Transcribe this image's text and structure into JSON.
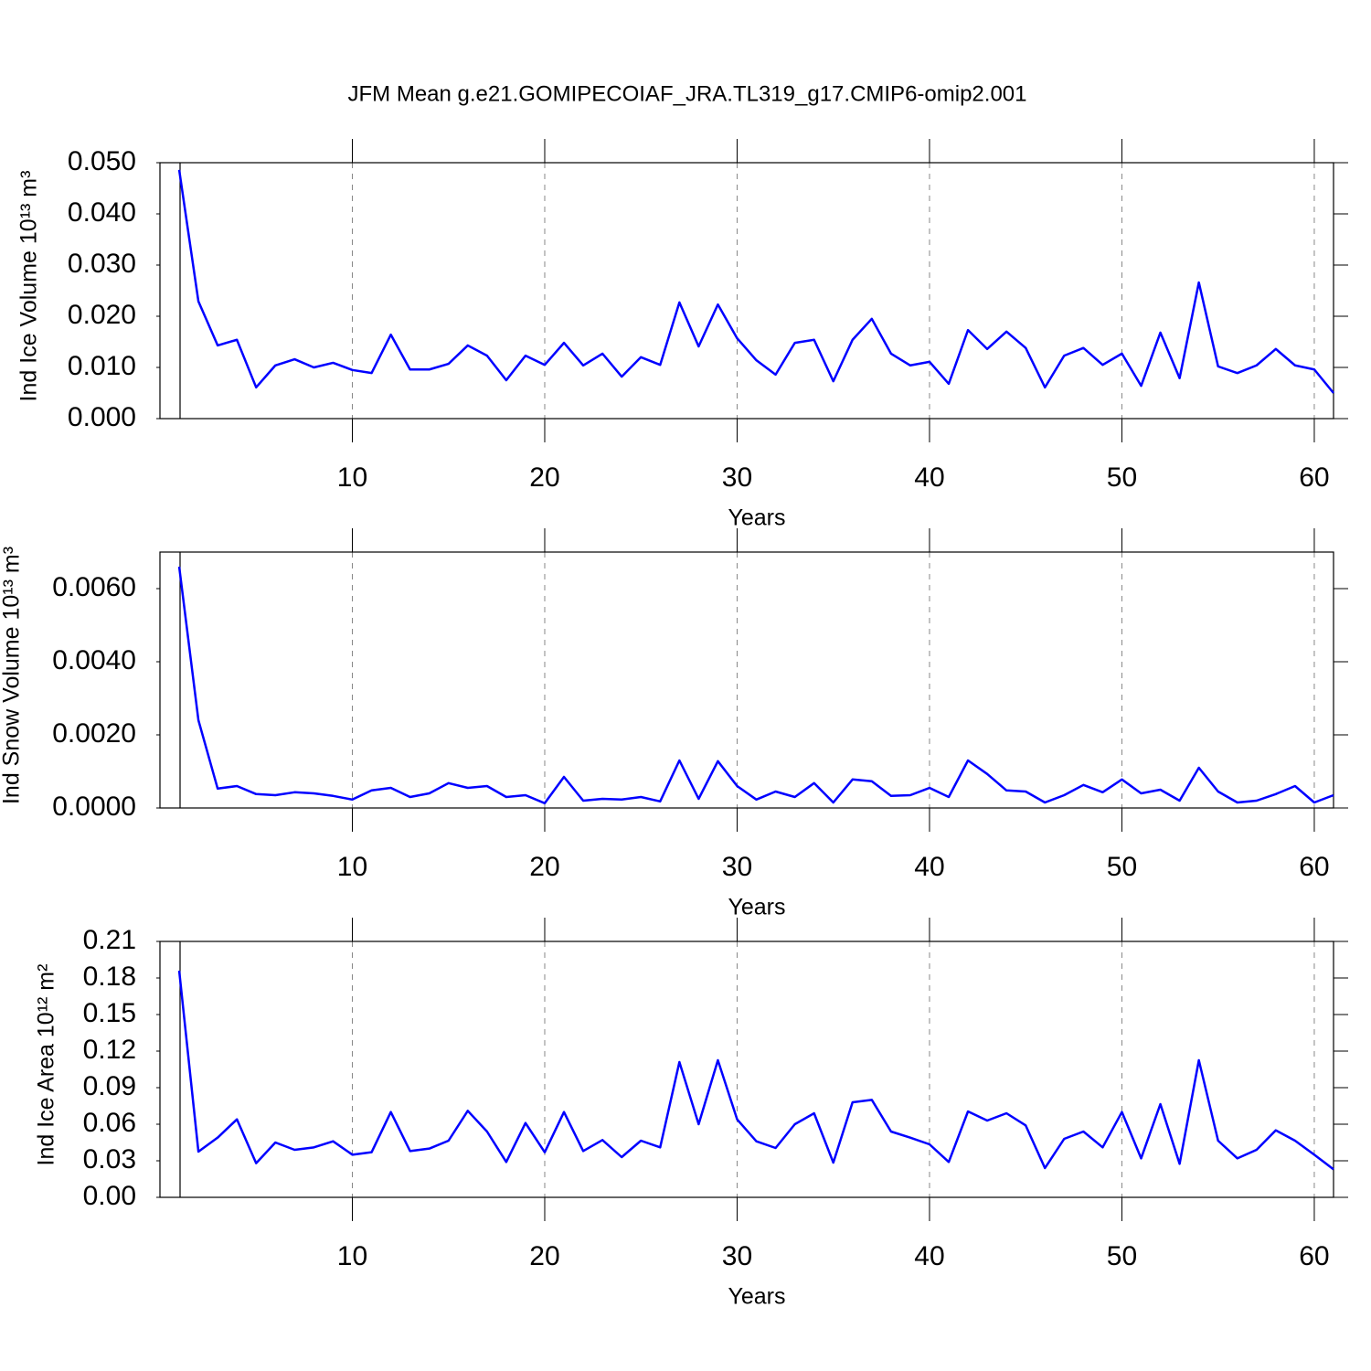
{
  "chart_data": [
    {
      "type": "line",
      "title": "JFM Mean g.e21.GOMIPECOIAF_JRA.TL319_g17.CMIP6-omip2.001",
      "xlabel": "Years",
      "ylabel": "Ind Ice Volume 10¹³ m³",
      "color": "#0000ff",
      "grid": true,
      "x": [
        1,
        2,
        3,
        4,
        5,
        6,
        7,
        8,
        9,
        10,
        11,
        12,
        13,
        14,
        15,
        16,
        17,
        18,
        19,
        20,
        21,
        22,
        23,
        24,
        25,
        26,
        27,
        28,
        29,
        30,
        31,
        32,
        33,
        34,
        35,
        36,
        37,
        38,
        39,
        40,
        41,
        42,
        43,
        44,
        45,
        46,
        47,
        48,
        49,
        50,
        51,
        52,
        53,
        54,
        55,
        56,
        57,
        58,
        59,
        60,
        61
      ],
      "values": [
        0.0486,
        0.0229,
        0.0143,
        0.0154,
        0.0061,
        0.0104,
        0.0116,
        0.01,
        0.0109,
        0.0095,
        0.0089,
        0.0164,
        0.0096,
        0.0096,
        0.0107,
        0.0143,
        0.0123,
        0.0075,
        0.0123,
        0.0105,
        0.0148,
        0.0104,
        0.0127,
        0.0082,
        0.012,
        0.0105,
        0.0227,
        0.0141,
        0.0223,
        0.0157,
        0.0114,
        0.0086,
        0.0148,
        0.0154,
        0.0073,
        0.0154,
        0.0195,
        0.0127,
        0.0104,
        0.0111,
        0.0068,
        0.0173,
        0.0136,
        0.017,
        0.0138,
        0.0061,
        0.0123,
        0.0138,
        0.0105,
        0.0127,
        0.0064,
        0.0168,
        0.0079,
        0.0266,
        0.0102,
        0.0089,
        0.0104,
        0.0136,
        0.0104,
        0.0096,
        0.005
      ],
      "xlim": [
        0,
        61
      ],
      "xticks": [
        10,
        20,
        30,
        40,
        50,
        60
      ],
      "ylim": [
        0,
        0.05
      ],
      "yticks": [
        {
          "value": 0,
          "label": "0.000"
        },
        {
          "value": 0.01,
          "label": "0.010"
        },
        {
          "value": 0.02,
          "label": "0.020"
        },
        {
          "value": 0.03,
          "label": "0.030"
        },
        {
          "value": 0.04,
          "label": "0.040"
        },
        {
          "value": 0.05,
          "label": "0.050"
        }
      ]
    },
    {
      "type": "line",
      "xlabel": "Years",
      "ylabel": "Ind Snow Volume 10¹³ m³",
      "color": "#0000ff",
      "grid": true,
      "x": [
        1,
        2,
        3,
        4,
        5,
        6,
        7,
        8,
        9,
        10,
        11,
        12,
        13,
        14,
        15,
        16,
        17,
        18,
        19,
        20,
        21,
        22,
        23,
        24,
        25,
        26,
        27,
        28,
        29,
        30,
        31,
        32,
        33,
        34,
        35,
        36,
        37,
        38,
        39,
        40,
        41,
        42,
        43,
        44,
        45,
        46,
        47,
        48,
        49,
        50,
        51,
        52,
        53,
        54,
        55,
        56,
        57,
        58,
        59,
        60,
        61
      ],
      "values": [
        0.0066,
        0.0024,
        0.00053,
        0.0006,
        0.00038,
        0.00035,
        0.00043,
        0.0004,
        0.00033,
        0.00023,
        0.00048,
        0.00055,
        0.0003,
        0.0004,
        0.00068,
        0.00055,
        0.0006,
        0.0003,
        0.00035,
        0.00013,
        0.00085,
        0.0002,
        0.00025,
        0.00023,
        0.0003,
        0.00018,
        0.0013,
        0.00025,
        0.00128,
        0.0006,
        0.00023,
        0.00045,
        0.0003,
        0.00068,
        0.00015,
        0.00078,
        0.00073,
        0.00033,
        0.00035,
        0.00055,
        0.0003,
        0.0013,
        0.00093,
        0.00048,
        0.00045,
        0.00015,
        0.00035,
        0.00063,
        0.00043,
        0.00078,
        0.0004,
        0.0005,
        0.0002,
        0.0011,
        0.00045,
        0.00015,
        0.0002,
        0.00038,
        0.0006,
        0.00015,
        0.00035
      ],
      "xlim": [
        0,
        61
      ],
      "xticks": [
        10,
        20,
        30,
        40,
        50,
        60
      ],
      "ylim": [
        0,
        0.007
      ],
      "yticks": [
        {
          "value": 0,
          "label": "0.0000"
        },
        {
          "value": 0.002,
          "label": "0.0020"
        },
        {
          "value": 0.004,
          "label": "0.0040"
        },
        {
          "value": 0.006,
          "label": "0.0060"
        }
      ]
    },
    {
      "type": "line",
      "xlabel": "Years",
      "ylabel": "Ind Ice Area 10¹² m²",
      "color": "#0000ff",
      "grid": true,
      "x": [
        1,
        2,
        3,
        4,
        5,
        6,
        7,
        8,
        9,
        10,
        11,
        12,
        13,
        14,
        15,
        16,
        17,
        18,
        19,
        20,
        21,
        22,
        23,
        24,
        25,
        26,
        27,
        28,
        29,
        30,
        31,
        32,
        33,
        34,
        35,
        36,
        37,
        38,
        39,
        40,
        41,
        42,
        43,
        44,
        45,
        46,
        47,
        48,
        49,
        50,
        51,
        52,
        53,
        54,
        55,
        56,
        57,
        58,
        59,
        60,
        61
      ],
      "values": [
        0.186,
        0.0375,
        0.049,
        0.064,
        0.028,
        0.045,
        0.039,
        0.041,
        0.046,
        0.035,
        0.037,
        0.07,
        0.038,
        0.04,
        0.0465,
        0.071,
        0.054,
        0.029,
        0.061,
        0.037,
        0.07,
        0.038,
        0.047,
        0.033,
        0.0465,
        0.041,
        0.111,
        0.06,
        0.1125,
        0.064,
        0.046,
        0.0405,
        0.06,
        0.069,
        0.0285,
        0.078,
        0.08,
        0.054,
        0.049,
        0.0435,
        0.029,
        0.0705,
        0.063,
        0.069,
        0.059,
        0.024,
        0.048,
        0.054,
        0.041,
        0.07,
        0.032,
        0.0765,
        0.0275,
        0.1125,
        0.0465,
        0.032,
        0.039,
        0.055,
        0.0465,
        0.035,
        0.023
      ],
      "xlim": [
        0,
        61
      ],
      "xticks": [
        10,
        20,
        30,
        40,
        50,
        60
      ],
      "ylim": [
        0,
        0.21
      ],
      "yticks": [
        {
          "value": 0,
          "label": "0.00"
        },
        {
          "value": 0.03,
          "label": "0.03"
        },
        {
          "value": 0.06,
          "label": "0.06"
        },
        {
          "value": 0.09,
          "label": "0.09"
        },
        {
          "value": 0.12,
          "label": "0.12"
        },
        {
          "value": 0.15,
          "label": "0.15"
        },
        {
          "value": 0.18,
          "label": "0.18"
        },
        {
          "value": 0.21,
          "label": "0.21"
        }
      ]
    }
  ]
}
